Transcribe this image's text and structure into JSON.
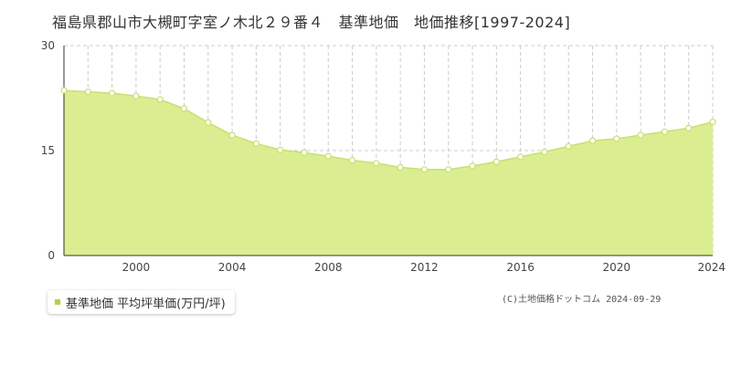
{
  "chart_data": {
    "type": "area",
    "title": "福島県郡山市大槻町字室ノ木北２９番４　基準地価　地価推移[1997-2024]",
    "xlabel": "",
    "ylabel": "",
    "x": [
      1997,
      1998,
      1999,
      2000,
      2001,
      2002,
      2003,
      2004,
      2005,
      2006,
      2007,
      2008,
      2009,
      2010,
      2011,
      2012,
      2013,
      2014,
      2015,
      2016,
      2017,
      2018,
      2019,
      2020,
      2021,
      2022,
      2023,
      2024
    ],
    "series": [
      {
        "name": "基準地価 平均坪単価(万円/坪)",
        "values": [
          23.6,
          23.4,
          23.2,
          22.8,
          22.3,
          21.0,
          19.0,
          17.2,
          16.0,
          15.1,
          14.7,
          14.2,
          13.6,
          13.2,
          12.6,
          12.3,
          12.3,
          12.8,
          13.4,
          14.1,
          14.8,
          15.6,
          16.4,
          16.7,
          17.2,
          17.7,
          18.2,
          19.1
        ]
      }
    ],
    "xlim": [
      1997,
      2024
    ],
    "ylim": [
      0,
      30
    ],
    "y_ticks": [
      "0",
      "15",
      "30"
    ],
    "x_ticks": [
      "2000",
      "2004",
      "2008",
      "2012",
      "2016",
      "2020",
      "2024"
    ],
    "x_tick_values": [
      2000,
      2004,
      2008,
      2012,
      2016,
      2020,
      2024
    ],
    "y_tick_values": [
      0,
      15,
      30
    ],
    "grid": true,
    "legend_position": "bottom-left",
    "colors": {
      "line": "#c8e070",
      "fill": "#dbed91",
      "marker_fill": "#ffffff",
      "grid": "#cccccc",
      "axis": "#333333",
      "legend_swatch": "#b5d43b"
    }
  },
  "copyright": "(C)土地価格ドットコム 2024-09-29"
}
